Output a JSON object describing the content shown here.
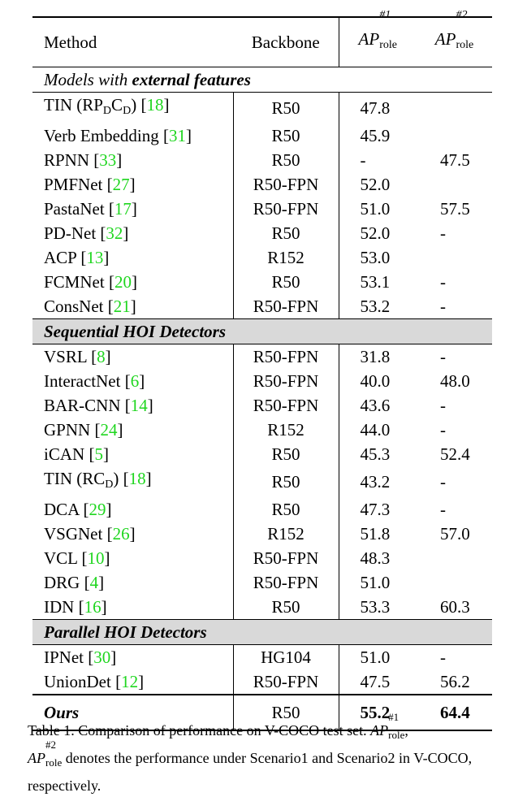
{
  "header": {
    "method": "Method",
    "backbone": "Backbone",
    "ap_base": "AP",
    "ap1_sup": "#1",
    "ap2_sup": "#2",
    "ap_sub": "role"
  },
  "sections": [
    {
      "title_prefix": "Models with ",
      "title_bold": "external features",
      "shaded": false,
      "rows": [
        {
          "name": "TIN (RP",
          "sub1": "D",
          "mid": "C",
          "sub2": "D",
          "tail": ") ",
          "ref": "18",
          "backbone": "R50",
          "ap1": "47.8",
          "ap2": ""
        },
        {
          "name": "Verb Embedding ",
          "ref": "31",
          "backbone": "R50",
          "ap1": "45.9",
          "ap2": ""
        },
        {
          "name": "RPNN ",
          "ref": "33",
          "backbone": "R50",
          "ap1": "-",
          "ap2": "47.5"
        },
        {
          "name": "PMFNet ",
          "ref": "27",
          "backbone": "R50-FPN",
          "ap1": "52.0",
          "ap2": ""
        },
        {
          "name": "PastaNet ",
          "ref": "17",
          "backbone": "R50-FPN",
          "ap1": "51.0",
          "ap2": "57.5"
        },
        {
          "name": "PD-Net ",
          "ref": "32",
          "backbone": "R50",
          "ap1": "52.0",
          "ap2": "-"
        },
        {
          "name": "ACP ",
          "ref": "13",
          "backbone": "R152",
          "ap1": "53.0",
          "ap2": ""
        },
        {
          "name": "FCMNet ",
          "ref": "20",
          "backbone": "R50",
          "ap1": "53.1",
          "ap2": "-"
        },
        {
          "name": "ConsNet ",
          "ref": "21",
          "backbone": "R50-FPN",
          "ap1": "53.2",
          "ap2": "-"
        }
      ]
    },
    {
      "title": "Sequential HOI Detectors",
      "shaded": true,
      "rows": [
        {
          "name": "VSRL ",
          "ref": "8",
          "backbone": "R50-FPN",
          "ap1": "31.8",
          "ap2": "-"
        },
        {
          "name": "InteractNet ",
          "ref": "6",
          "backbone": "R50-FPN",
          "ap1": "40.0",
          "ap2": "48.0"
        },
        {
          "name": "BAR-CNN ",
          "ref": "14",
          "backbone": "R50-FPN",
          "ap1": "43.6",
          "ap2": "-"
        },
        {
          "name": "GPNN ",
          "ref": "24",
          "backbone": "R152",
          "ap1": "44.0",
          "ap2": "-"
        },
        {
          "name": "iCAN ",
          "ref": "5",
          "backbone": "R50",
          "ap1": "45.3",
          "ap2": "52.4"
        },
        {
          "name": "TIN (RC",
          "sub1": "D",
          "tail": ") ",
          "ref": "18",
          "backbone": "R50",
          "ap1": "43.2",
          "ap2": "-"
        },
        {
          "name": "DCA ",
          "ref": "29",
          "backbone": "R50",
          "ap1": "47.3",
          "ap2": "-"
        },
        {
          "name": "VSGNet ",
          "ref": "26",
          "backbone": "R152",
          "ap1": "51.8",
          "ap2": "57.0"
        },
        {
          "name": "VCL ",
          "ref": "10",
          "backbone": "R50-FPN",
          "ap1": "48.3",
          "ap2": ""
        },
        {
          "name": "DRG ",
          "ref": "4",
          "backbone": "R50-FPN",
          "ap1": "51.0",
          "ap2": ""
        },
        {
          "name": "IDN ",
          "ref": "16",
          "backbone": "R50",
          "ap1": "53.3",
          "ap2": "60.3"
        }
      ]
    },
    {
      "title": "Parallel HOI Detectors",
      "shaded": true,
      "rows": [
        {
          "name": "IPNet ",
          "ref": "30",
          "backbone": "HG104",
          "ap1": "51.0",
          "ap2": "-"
        },
        {
          "name": "UnionDet ",
          "ref": "12",
          "backbone": "R50-FPN",
          "ap1": "47.5",
          "ap2": "56.2"
        }
      ]
    }
  ],
  "ours": {
    "name": "Ours",
    "backbone": "R50",
    "ap1": "55.2",
    "ap2": "64.4"
  },
  "caption": {
    "part1": "Table 1. Comparison of performance on V-COCO test set. ",
    "ap": "AP",
    "sup1": "#1",
    "sup2": "#2",
    "sub": "role",
    "comma": ",",
    "part2": " denotes the performance under Scenario1 and Scenario2 in V-COCO, respectively."
  }
}
